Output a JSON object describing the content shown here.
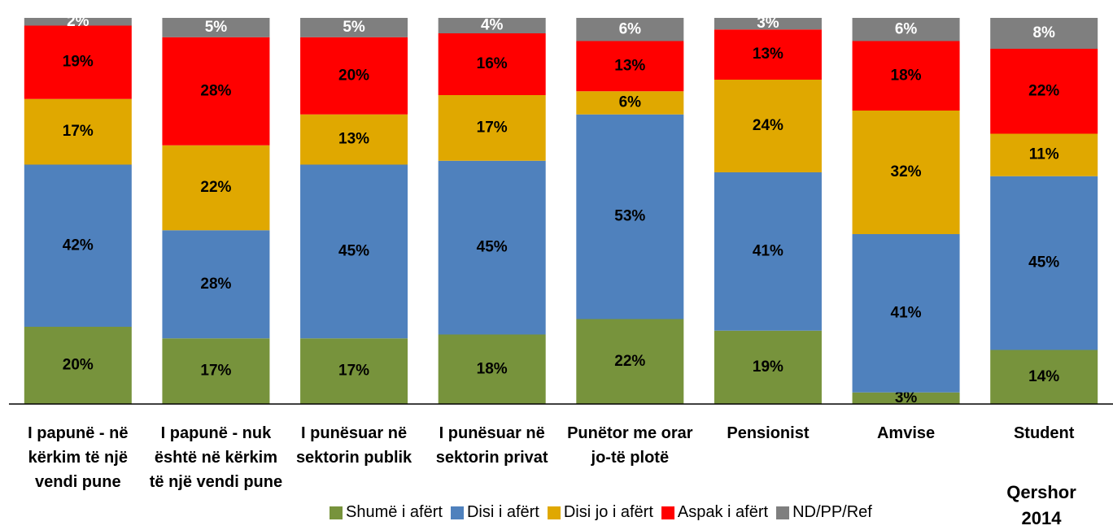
{
  "chart_data": {
    "type": "stacked_bar",
    "categories": [
      "I papunë - në kërkim të një vendi pune",
      "I papunë - nuk është në kërkim të një vendi pune",
      "I punësuar në sektorin publik",
      "I punësuar në sektorin privat",
      "Punëtor me orar jo-të plotë",
      "Pensionist",
      "Amvise",
      "Student"
    ],
    "ylim": [
      0,
      100
    ],
    "series": [
      {
        "name": "Shumë i afërt",
        "color": "#77933c",
        "values": [
          20,
          17,
          17,
          18,
          22,
          19,
          3,
          14
        ],
        "value_labels": [
          "20%",
          "17%",
          "17%",
          "18%",
          "22%",
          "19%",
          "3%",
          "14%"
        ]
      },
      {
        "name": "Disi i afërt",
        "color": "#4f81bd",
        "values": [
          42,
          28,
          45,
          45,
          53,
          41,
          41,
          45
        ],
        "value_labels": [
          "42%",
          "28%",
          "45%",
          "45%",
          "53%",
          "41%",
          "41%",
          "45%"
        ]
      },
      {
        "name": "Disi jo i afërt",
        "color": "#e0a800",
        "values": [
          17,
          22,
          13,
          17,
          6,
          24,
          32,
          11
        ],
        "value_labels": [
          "17%",
          "22%",
          "13%",
          "17%",
          "6%",
          "24%",
          "32%",
          "11%"
        ]
      },
      {
        "name": "Aspak i afërt",
        "color": "#ff0000",
        "values": [
          19,
          28,
          20,
          16,
          13,
          13,
          18,
          22
        ],
        "value_labels": [
          "19%",
          "28%",
          "20%",
          "16%",
          "13%",
          "13%",
          "18%",
          "22%"
        ]
      },
      {
        "name": "ND/PP/Ref",
        "color": "#7f7f7f",
        "values": [
          2,
          5,
          5,
          4,
          6,
          3,
          6,
          8
        ],
        "value_labels": [
          "2%",
          "5%",
          "5%",
          "4%",
          "6%",
          "3%",
          "6%",
          "8%"
        ]
      }
    ],
    "annotation": "Qershor 2014"
  }
}
